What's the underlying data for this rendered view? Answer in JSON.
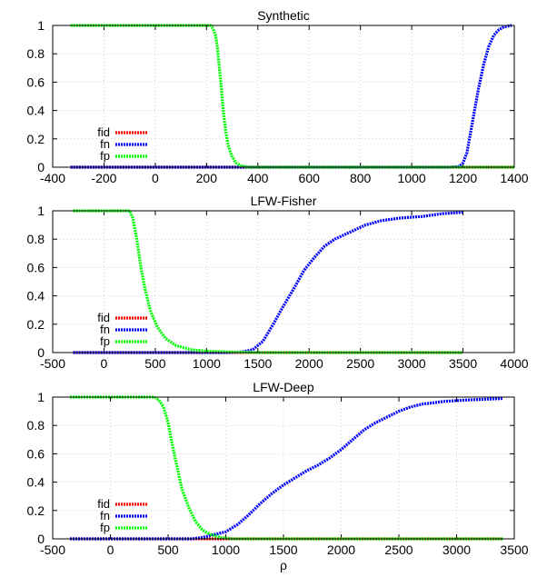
{
  "chart_data": [
    {
      "type": "line",
      "title": "Synthetic",
      "xlabel": "",
      "ylabel": "",
      "xlim": [
        -400,
        1400
      ],
      "ylim": [
        0,
        1
      ],
      "xticks": [
        -400,
        -200,
        0,
        200,
        400,
        600,
        800,
        1000,
        1200,
        1400
      ],
      "xtick_labels": [
        "-400",
        "-200",
        "0",
        "200",
        "400",
        "600",
        "800",
        "1000",
        "1200",
        "1400"
      ],
      "yticks": [
        0,
        0.2,
        0.4,
        0.6,
        0.8,
        1
      ],
      "ytick_labels": [
        "0",
        "0.2",
        "0.4",
        "0.6",
        "0.8",
        "1"
      ],
      "grid": true,
      "legend_position": "bottom-left",
      "series": [
        {
          "name": "fid",
          "color": "#ff0000",
          "points": [
            [
              -330,
              0
            ],
            [
              1400,
              0
            ]
          ]
        },
        {
          "name": "fn",
          "color": "#0000ff",
          "points": [
            [
              -330,
              0
            ],
            [
              1150,
              0
            ],
            [
              1185,
              0.005
            ],
            [
              1200,
              0.03
            ],
            [
              1215,
              0.1
            ],
            [
              1230,
              0.25
            ],
            [
              1245,
              0.4
            ],
            [
              1260,
              0.55
            ],
            [
              1280,
              0.72
            ],
            [
              1300,
              0.85
            ],
            [
              1320,
              0.93
            ],
            [
              1340,
              0.97
            ],
            [
              1360,
              0.99
            ],
            [
              1390,
              1
            ]
          ]
        },
        {
          "name": "fp",
          "color": "#00ff00",
          "points": [
            [
              -330,
              1
            ],
            [
              215,
              1
            ],
            [
              225,
              0.98
            ],
            [
              235,
              0.93
            ],
            [
              242,
              0.85
            ],
            [
              250,
              0.7
            ],
            [
              258,
              0.55
            ],
            [
              265,
              0.4
            ],
            [
              275,
              0.25
            ],
            [
              285,
              0.15
            ],
            [
              298,
              0.08
            ],
            [
              315,
              0.03
            ],
            [
              335,
              0.01
            ],
            [
              360,
              0
            ],
            [
              1400,
              0
            ]
          ]
        }
      ]
    },
    {
      "type": "line",
      "title": "LFW-Fisher",
      "xlabel": "",
      "ylabel": "",
      "xlim": [
        -500,
        4000
      ],
      "ylim": [
        0,
        1
      ],
      "xticks": [
        -500,
        0,
        500,
        1000,
        1500,
        2000,
        2500,
        3000,
        3500,
        4000
      ],
      "xtick_labels": [
        "-500",
        "0",
        "500",
        "1000",
        "1500",
        "2000",
        "2500",
        "3000",
        "3500",
        "4000"
      ],
      "yticks": [
        0,
        0.2,
        0.4,
        0.6,
        0.8,
        1
      ],
      "ytick_labels": [
        "0",
        "0.2",
        "0.4",
        "0.6",
        "0.8",
        "1"
      ],
      "grid": true,
      "legend_position": "bottom-left",
      "series": [
        {
          "name": "fid",
          "color": "#ff0000",
          "points": [
            [
              -300,
              0
            ],
            [
              3500,
              0
            ]
          ]
        },
        {
          "name": "fn",
          "color": "#0000ff",
          "points": [
            [
              -300,
              0
            ],
            [
              1200,
              0
            ],
            [
              1350,
              0.005
            ],
            [
              1450,
              0.02
            ],
            [
              1550,
              0.08
            ],
            [
              1650,
              0.2
            ],
            [
              1750,
              0.33
            ],
            [
              1850,
              0.45
            ],
            [
              1950,
              0.58
            ],
            [
              2050,
              0.67
            ],
            [
              2150,
              0.75
            ],
            [
              2250,
              0.8
            ],
            [
              2400,
              0.85
            ],
            [
              2550,
              0.9
            ],
            [
              2700,
              0.93
            ],
            [
              2900,
              0.95
            ],
            [
              3100,
              0.96
            ],
            [
              3300,
              0.98
            ],
            [
              3500,
              0.99
            ]
          ]
        },
        {
          "name": "fp",
          "color": "#00ff00",
          "points": [
            [
              -300,
              1
            ],
            [
              250,
              1
            ],
            [
              280,
              0.95
            ],
            [
              320,
              0.8
            ],
            [
              360,
              0.6
            ],
            [
              400,
              0.45
            ],
            [
              450,
              0.3
            ],
            [
              520,
              0.18
            ],
            [
              600,
              0.1
            ],
            [
              700,
              0.05
            ],
            [
              850,
              0.02
            ],
            [
              1000,
              0.01
            ],
            [
              1200,
              0.005
            ],
            [
              1500,
              0
            ],
            [
              3500,
              0
            ]
          ]
        }
      ]
    },
    {
      "type": "line",
      "title": "LFW-Deep",
      "xlabel": "ρ",
      "ylabel": "",
      "xlim": [
        -500,
        3500
      ],
      "ylim": [
        0,
        1
      ],
      "xticks": [
        -500,
        0,
        500,
        1000,
        1500,
        2000,
        2500,
        3000,
        3500
      ],
      "xtick_labels": [
        "-500",
        "0",
        "500",
        "1000",
        "1500",
        "2000",
        "2500",
        "3000",
        "3500"
      ],
      "yticks": [
        0,
        0.2,
        0.4,
        0.6,
        0.8,
        1
      ],
      "ytick_labels": [
        "0",
        "0.2",
        "0.4",
        "0.6",
        "0.8",
        "1"
      ],
      "grid": true,
      "legend_position": "bottom-left",
      "series": [
        {
          "name": "fid",
          "color": "#ff0000",
          "points": [
            [
              -350,
              0
            ],
            [
              3400,
              0
            ]
          ]
        },
        {
          "name": "fn",
          "color": "#0000ff",
          "points": [
            [
              -350,
              0
            ],
            [
              700,
              0
            ],
            [
              800,
              0.01
            ],
            [
              900,
              0.03
            ],
            [
              1000,
              0.05
            ],
            [
              1100,
              0.1
            ],
            [
              1200,
              0.17
            ],
            [
              1300,
              0.25
            ],
            [
              1400,
              0.32
            ],
            [
              1500,
              0.38
            ],
            [
              1600,
              0.43
            ],
            [
              1700,
              0.48
            ],
            [
              1800,
              0.52
            ],
            [
              1900,
              0.57
            ],
            [
              2000,
              0.63
            ],
            [
              2100,
              0.7
            ],
            [
              2200,
              0.77
            ],
            [
              2300,
              0.82
            ],
            [
              2400,
              0.86
            ],
            [
              2500,
              0.9
            ],
            [
              2600,
              0.93
            ],
            [
              2700,
              0.95
            ],
            [
              2900,
              0.97
            ],
            [
              3100,
              0.98
            ],
            [
              3400,
              0.99
            ]
          ]
        },
        {
          "name": "fp",
          "color": "#00ff00",
          "points": [
            [
              -350,
              1
            ],
            [
              380,
              1
            ],
            [
              420,
              0.98
            ],
            [
              460,
              0.93
            ],
            [
              500,
              0.82
            ],
            [
              540,
              0.65
            ],
            [
              580,
              0.5
            ],
            [
              620,
              0.35
            ],
            [
              680,
              0.22
            ],
            [
              740,
              0.12
            ],
            [
              800,
              0.06
            ],
            [
              870,
              0.03
            ],
            [
              950,
              0.01
            ],
            [
              1050,
              0
            ],
            [
              3400,
              0
            ]
          ]
        }
      ]
    }
  ]
}
